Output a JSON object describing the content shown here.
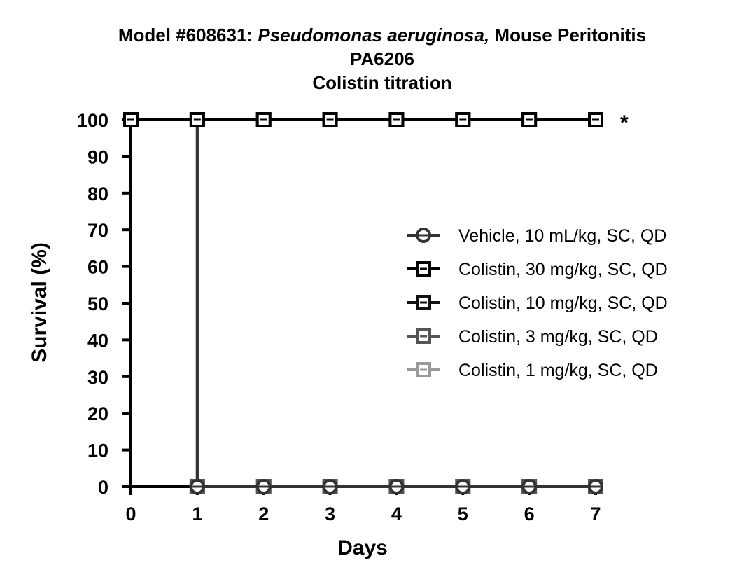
{
  "chart_data": {
    "type": "line",
    "title_parts": [
      "Model #608631: ",
      "Pseudomonas aeruginosa,",
      " Mouse Peritonitis"
    ],
    "subtitle_line2": "PA6206",
    "subtitle_line3": "Colistin titration",
    "xlabel": "Days",
    "ylabel": "Survival (%)",
    "xlim": [
      0,
      7
    ],
    "ylim": [
      0,
      100
    ],
    "x_ticks": [
      "0",
      "1",
      "2",
      "3",
      "4",
      "5",
      "6",
      "7"
    ],
    "y_ticks": [
      "0",
      "10",
      "20",
      "30",
      "40",
      "50",
      "60",
      "70",
      "80",
      "90",
      "100"
    ],
    "grid": false,
    "legend_position": "right",
    "annotation": "*",
    "x": [
      0,
      1,
      2,
      3,
      4,
      5,
      6,
      7
    ],
    "series": [
      {
        "name": "Vehicle, 10 mL/kg, SC, QD",
        "marker": "circle",
        "color": "#333333",
        "values": [
          100,
          0,
          0,
          0,
          0,
          0,
          0,
          0
        ]
      },
      {
        "name": "Colistin, 30 mg/kg, SC, QD",
        "marker": "square",
        "color": "#000000",
        "values": [
          100,
          100,
          100,
          100,
          100,
          100,
          100,
          100
        ]
      },
      {
        "name": "Colistin, 10 mg/kg, SC, QD",
        "marker": "square",
        "color": "#111111",
        "values": [
          100,
          100,
          100,
          100,
          100,
          100,
          100,
          100
        ]
      },
      {
        "name": "Colistin, 3 mg/kg, SC, QD",
        "marker": "square",
        "color": "#555555",
        "values": [
          100,
          0,
          0,
          0,
          0,
          0,
          0,
          0
        ]
      },
      {
        "name": "Colistin, 1 mg/kg, SC, QD",
        "marker": "square",
        "color": "#999999",
        "values": [
          100,
          0,
          0,
          0,
          0,
          0,
          0,
          0
        ]
      }
    ]
  }
}
